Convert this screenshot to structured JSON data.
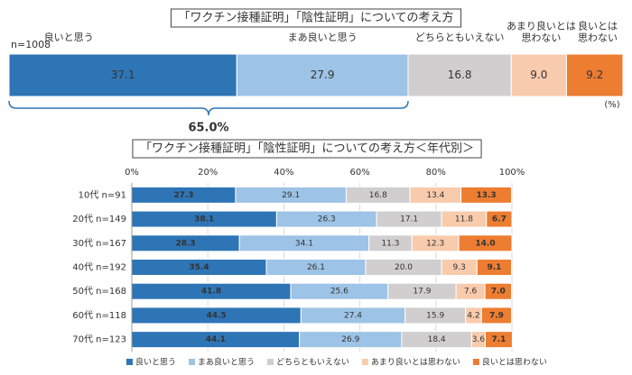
{
  "chart_data": [
    {
      "type": "stacked_bar_single",
      "title": "「ワクチン接種証明」「陰性証明」についての考え方",
      "sample_label": "n=1008",
      "unit_label": "(%)",
      "annotation": "65.0%",
      "categories": [
        "良いと思う",
        "まあ良いと思う",
        "どちらともいえない",
        "あまり良いとは\n思わない",
        "良いとは\n思わない"
      ],
      "values": [
        37.1,
        27.9,
        16.8,
        9.0,
        9.2
      ],
      "value_labels": [
        "37.1",
        "27.9",
        "16.8",
        "9.0",
        "9.2"
      ],
      "colors": [
        "#2e75b6",
        "#9dc3e6",
        "#d0cece",
        "#f8cbad",
        "#ed7d31"
      ],
      "label_colors": [
        "#ffffff",
        "#333333",
        "#333333",
        "#333333",
        "#ffffff"
      ]
    },
    {
      "type": "stacked_barh",
      "title": "「ワクチン接種証明」「陰性証明」についての考え方＜年代別＞",
      "categories": [
        "10代 n=91",
        "20代 n=149",
        "30代 n=167",
        "40代 n=192",
        "50代 n=168",
        "60代 n=118",
        "70代 n=123"
      ],
      "xlim": [
        0,
        100
      ],
      "xticks": [
        {
          "value": 0,
          "label": "0%"
        },
        {
          "value": 20,
          "label": "20%"
        },
        {
          "value": 40,
          "label": "40%"
        },
        {
          "value": 60,
          "label": "60%"
        },
        {
          "value": 80,
          "label": "80%"
        },
        {
          "value": 100,
          "label": "100%"
        }
      ],
      "grid": true,
      "legend": "bottom",
      "series": [
        {
          "name": "良いと思う",
          "color": "#2e75b6",
          "label_color": "#ffffff",
          "values": [
            27.3,
            38.1,
            28.3,
            35.4,
            41.8,
            44.5,
            44.1
          ],
          "value_labels": [
            "27.3",
            "38.1",
            "28.3",
            "35.4",
            "41.8",
            "44.5",
            "44.1"
          ]
        },
        {
          "name": "まあ良いと思う",
          "color": "#9dc3e6",
          "label_color": "#333333",
          "values": [
            29.1,
            26.3,
            34.1,
            26.1,
            25.6,
            27.4,
            26.9
          ],
          "value_labels": [
            "29.1",
            "26.3",
            "34.1",
            "26.1",
            "25.6",
            "27.4",
            "26.9"
          ]
        },
        {
          "name": "どちらともいえない",
          "color": "#d0cece",
          "label_color": "#333333",
          "values": [
            16.8,
            17.1,
            11.3,
            20.0,
            17.9,
            15.9,
            18.4
          ],
          "value_labels": [
            "16.8",
            "17.1",
            "11.3",
            "20.0",
            "17.9",
            "15.9",
            "18.4"
          ]
        },
        {
          "name": "あまり良いとは思わない",
          "color": "#f8cbad",
          "label_color": "#333333",
          "values": [
            13.4,
            11.8,
            12.3,
            9.3,
            7.6,
            4.2,
            3.6
          ],
          "value_labels": [
            "13.4",
            "11.8",
            "12.3",
            "9.3",
            "7.6",
            "4.2",
            "3.6"
          ]
        },
        {
          "name": "良いとは思わない",
          "color": "#ed7d31",
          "label_color": "#ffffff",
          "values": [
            13.3,
            6.7,
            14.0,
            9.1,
            7.0,
            7.9,
            7.1
          ],
          "value_labels": [
            "13.3",
            "6.7",
            "14.0",
            "9.1",
            "7.0",
            "7.9",
            "7.1"
          ]
        }
      ]
    }
  ]
}
